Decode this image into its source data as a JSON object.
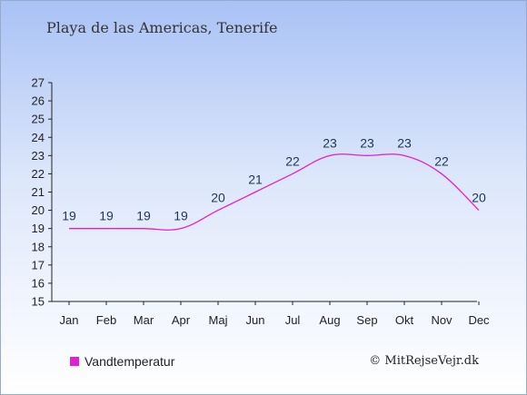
{
  "chart_data": {
    "type": "line",
    "title": "Playa de las Americas, Tenerife",
    "categories": [
      "Jan",
      "Feb",
      "Mar",
      "Apr",
      "Maj",
      "Jun",
      "Jul",
      "Aug",
      "Sep",
      "Okt",
      "Nov",
      "Dec"
    ],
    "series": [
      {
        "name": "Vandtemperatur",
        "values": [
          19,
          19,
          19,
          19,
          20,
          21,
          22,
          23,
          23,
          23,
          22,
          20
        ],
        "color": "#e01fd6"
      }
    ],
    "yticks": [
      15,
      16,
      17,
      18,
      19,
      20,
      21,
      22,
      23,
      24,
      25,
      26,
      27
    ],
    "ylim": [
      15,
      27
    ],
    "grid": false,
    "legend": "bottom-left"
  },
  "credit": "© MitRejseVejr.dk"
}
